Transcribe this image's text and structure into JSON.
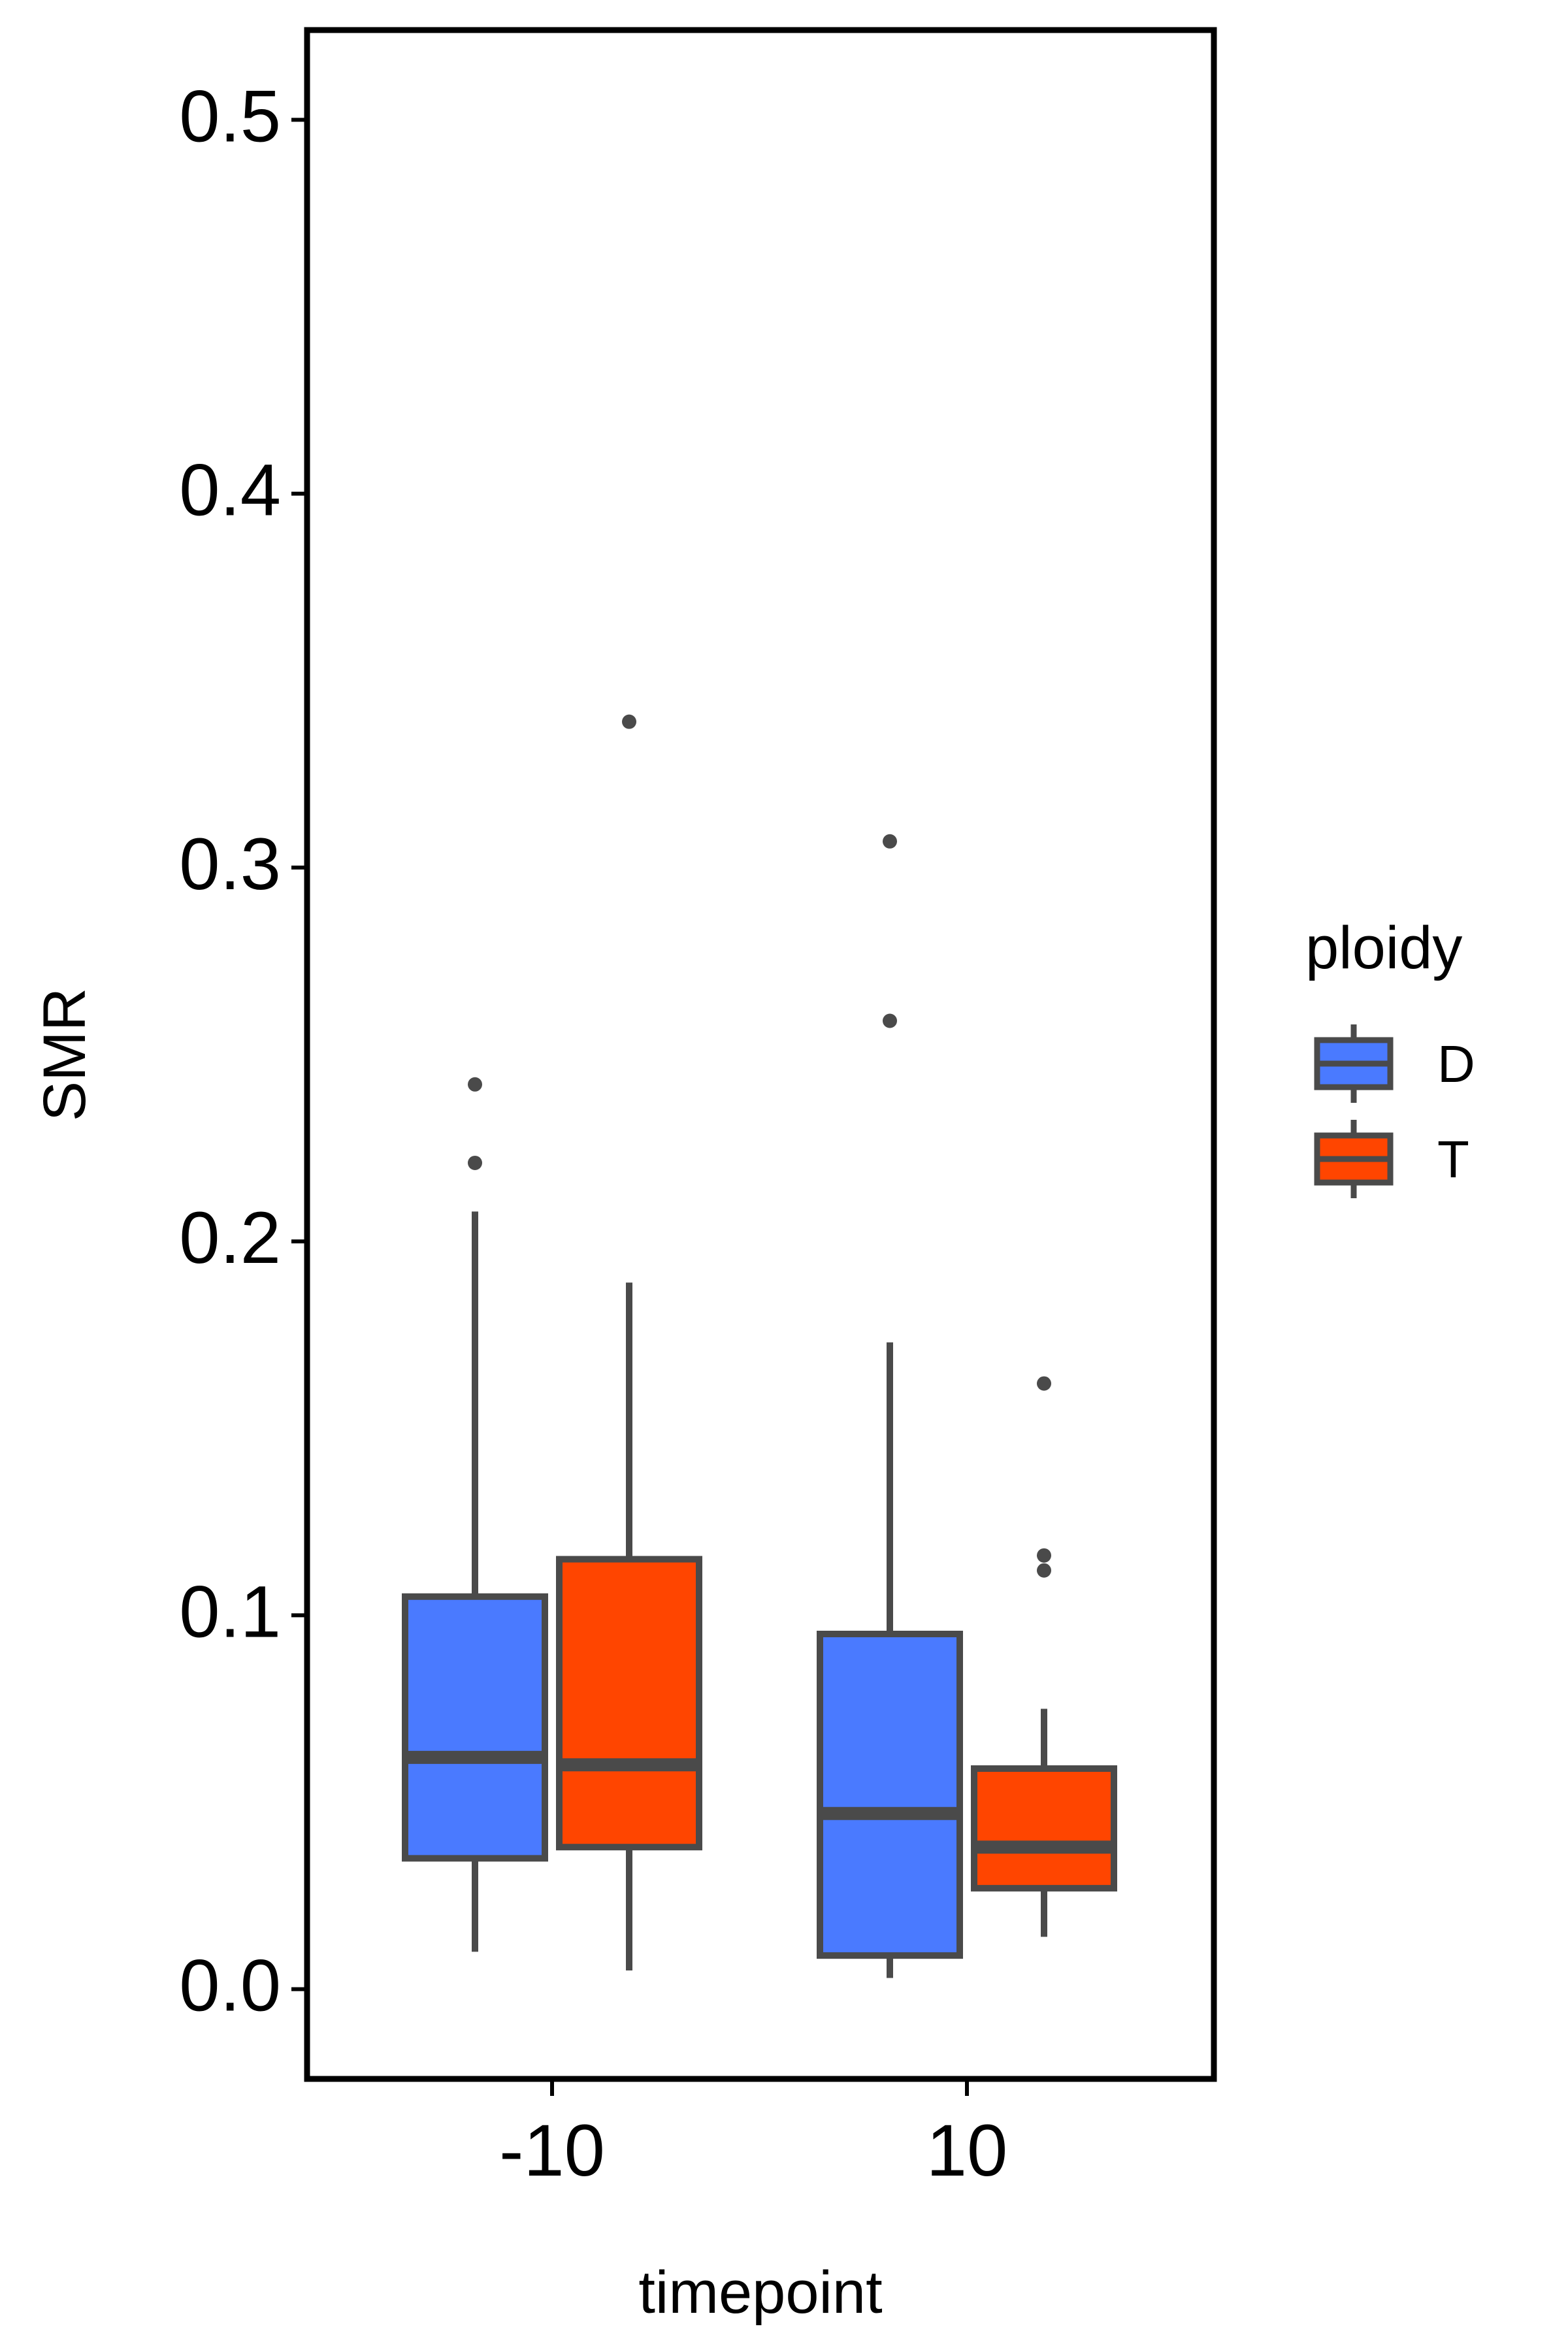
{
  "chart_data": {
    "type": "boxplot",
    "xlabel": "timepoint",
    "ylabel": "SMR",
    "categories": [
      "-10",
      "10"
    ],
    "ylim": [
      -0.024,
      0.524
    ],
    "yticks": [
      0.0,
      0.1,
      0.2,
      0.3,
      0.4,
      0.5
    ],
    "ytick_labels": [
      "0.0",
      "0.1",
      "0.2",
      "0.3",
      "0.4",
      "0.5"
    ],
    "grid": false,
    "legend": {
      "title": "ploidy",
      "placement": "right",
      "entries": [
        "D",
        "T"
      ]
    },
    "colors": {
      "D": "#4a7aff",
      "T": "#ff4500",
      "box_line": "#4a4a4a"
    },
    "groups": [
      {
        "timepoint": "-10",
        "ploidy": "D",
        "whisker_low": 0.01,
        "q1": 0.035,
        "median": 0.062,
        "q3": 0.105,
        "whisker_high": 0.208,
        "outliers": [
          0.221,
          0.242
        ]
      },
      {
        "timepoint": "-10",
        "ploidy": "T",
        "whisker_low": 0.005,
        "q1": 0.038,
        "median": 0.06,
        "q3": 0.115,
        "whisker_high": 0.189,
        "outliers": [
          0.339
        ]
      },
      {
        "timepoint": "10",
        "ploidy": "D",
        "whisker_low": 0.003,
        "q1": 0.009,
        "median": 0.047,
        "q3": 0.095,
        "whisker_high": 0.173,
        "outliers": [
          0.259,
          0.307
        ]
      },
      {
        "timepoint": "10",
        "ploidy": "T",
        "whisker_low": 0.014,
        "q1": 0.027,
        "median": 0.038,
        "q3": 0.059,
        "whisker_high": 0.075,
        "outliers": [
          0.112,
          0.116,
          0.162
        ]
      }
    ]
  }
}
